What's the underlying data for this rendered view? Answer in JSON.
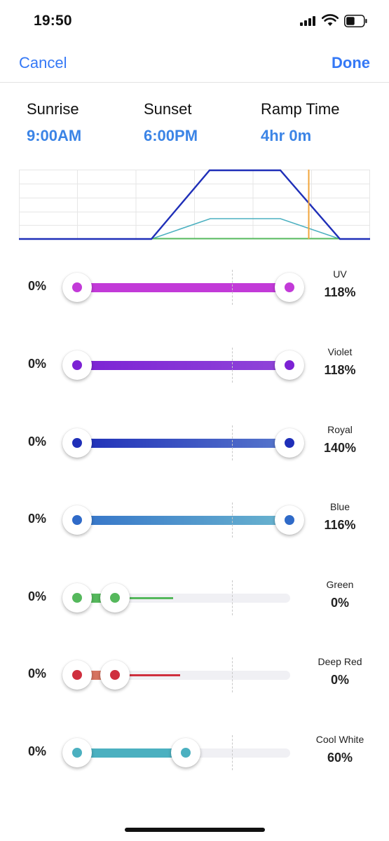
{
  "status_bar": {
    "time": "19:50"
  },
  "nav": {
    "cancel_label": "Cancel",
    "done_label": "Done"
  },
  "schedule": {
    "sunrise_label": "Sunrise",
    "sunrise_value": "9:00AM",
    "sunset_label": "Sunset",
    "sunset_value": "6:00PM",
    "ramp_label": "Ramp Time",
    "ramp_value": "4hr 0m"
  },
  "colors": {
    "accent": "#3478f6",
    "uv": "#c23ad8",
    "violet": "#7c22d4",
    "royal": "#1f2fb8",
    "blue": "#3574c9",
    "green": "#55b85c",
    "deep_red": "#cf2f3e",
    "cool_white": "#4bb0c0",
    "time_marker": "#f2a43b"
  },
  "channels": [
    {
      "name": "UV",
      "min": "0%",
      "max": "118%",
      "color": "#c23ad8",
      "level_pct": 118
    },
    {
      "name": "Violet",
      "min": "0%",
      "max": "118%",
      "color": "#7c22d4",
      "level_pct": 118
    },
    {
      "name": "Royal",
      "min": "0%",
      "max": "140%",
      "color": "#1f2fb8",
      "level_pct": 140
    },
    {
      "name": "Blue",
      "min": "0%",
      "max": "116%",
      "color": "#3574c9",
      "level_pct": 116
    },
    {
      "name": "Green",
      "min": "0%",
      "max": "0%",
      "color": "#55b85c",
      "level_pct": 0
    },
    {
      "name": "Deep Red",
      "min": "0%",
      "max": "0%",
      "color": "#cf2f3e",
      "level_pct": 0
    },
    {
      "name": "Cool White",
      "min": "0%",
      "max": "60%",
      "color": "#4bb0c0",
      "level_pct": 60
    }
  ]
}
